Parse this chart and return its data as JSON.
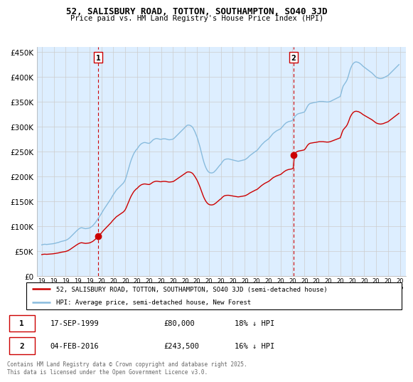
{
  "title": "52, SALISBURY ROAD, TOTTON, SOUTHAMPTON, SO40 3JD",
  "subtitle": "Price paid vs. HM Land Registry's House Price Index (HPI)",
  "legend_label_red": "52, SALISBURY ROAD, TOTTON, SOUTHAMPTON, SO40 3JD (semi-detached house)",
  "legend_label_blue": "HPI: Average price, semi-detached house, New Forest",
  "footer": "Contains HM Land Registry data © Crown copyright and database right 2025.\nThis data is licensed under the Open Government Licence v3.0.",
  "yticks": [
    0,
    50000,
    100000,
    150000,
    200000,
    250000,
    300000,
    350000,
    400000,
    450000
  ],
  "ytick_labels": [
    "£0",
    "£50K",
    "£100K",
    "£150K",
    "£200K",
    "£250K",
    "£300K",
    "£350K",
    "£400K",
    "£450K"
  ],
  "ylim": [
    0,
    460000
  ],
  "marker1": {
    "label": "1",
    "date": "17-SEP-1999",
    "price": "£80,000",
    "pct": "18% ↓ HPI",
    "x_year": 1999.72,
    "y": 80000
  },
  "marker2": {
    "label": "2",
    "date": "04-FEB-2016",
    "price": "£243,500",
    "pct": "16% ↓ HPI",
    "x_year": 2016.09,
    "y": 243500
  },
  "red_color": "#cc0000",
  "blue_color": "#88bbdd",
  "vline_color": "#cc0000",
  "grid_color": "#cccccc",
  "bg_fill_color": "#ddeeff",
  "background_color": "#ffffff",
  "hpi_months": [
    1995.0,
    1995.083,
    1995.167,
    1995.25,
    1995.333,
    1995.417,
    1995.5,
    1995.583,
    1995.667,
    1995.75,
    1995.833,
    1995.917,
    1996.0,
    1996.083,
    1996.167,
    1996.25,
    1996.333,
    1996.417,
    1996.5,
    1996.583,
    1996.667,
    1996.75,
    1996.833,
    1996.917,
    1997.0,
    1997.083,
    1997.167,
    1997.25,
    1997.333,
    1997.417,
    1997.5,
    1997.583,
    1997.667,
    1997.75,
    1997.833,
    1997.917,
    1998.0,
    1998.083,
    1998.167,
    1998.25,
    1998.333,
    1998.417,
    1998.5,
    1998.583,
    1998.667,
    1998.75,
    1998.833,
    1998.917,
    1999.0,
    1999.083,
    1999.167,
    1999.25,
    1999.333,
    1999.417,
    1999.5,
    1999.583,
    1999.667,
    1999.75,
    1999.833,
    1999.917,
    2000.0,
    2000.083,
    2000.167,
    2000.25,
    2000.333,
    2000.417,
    2000.5,
    2000.583,
    2000.667,
    2000.75,
    2000.833,
    2000.917,
    2001.0,
    2001.083,
    2001.167,
    2001.25,
    2001.333,
    2001.417,
    2001.5,
    2001.583,
    2001.667,
    2001.75,
    2001.833,
    2001.917,
    2002.0,
    2002.083,
    2002.167,
    2002.25,
    2002.333,
    2002.417,
    2002.5,
    2002.583,
    2002.667,
    2002.75,
    2002.833,
    2002.917,
    2003.0,
    2003.083,
    2003.167,
    2003.25,
    2003.333,
    2003.417,
    2003.5,
    2003.583,
    2003.667,
    2003.75,
    2003.833,
    2003.917,
    2004.0,
    2004.083,
    2004.167,
    2004.25,
    2004.333,
    2004.417,
    2004.5,
    2004.583,
    2004.667,
    2004.75,
    2004.833,
    2004.917,
    2005.0,
    2005.083,
    2005.167,
    2005.25,
    2005.333,
    2005.417,
    2005.5,
    2005.583,
    2005.667,
    2005.75,
    2005.833,
    2005.917,
    2006.0,
    2006.083,
    2006.167,
    2006.25,
    2006.333,
    2006.417,
    2006.5,
    2006.583,
    2006.667,
    2006.75,
    2006.833,
    2006.917,
    2007.0,
    2007.083,
    2007.167,
    2007.25,
    2007.333,
    2007.417,
    2007.5,
    2007.583,
    2007.667,
    2007.75,
    2007.833,
    2007.917,
    2008.0,
    2008.083,
    2008.167,
    2008.25,
    2008.333,
    2008.417,
    2008.5,
    2008.583,
    2008.667,
    2008.75,
    2008.833,
    2008.917,
    2009.0,
    2009.083,
    2009.167,
    2009.25,
    2009.333,
    2009.417,
    2009.5,
    2009.583,
    2009.667,
    2009.75,
    2009.833,
    2009.917,
    2010.0,
    2010.083,
    2010.167,
    2010.25,
    2010.333,
    2010.417,
    2010.5,
    2010.583,
    2010.667,
    2010.75,
    2010.833,
    2010.917,
    2011.0,
    2011.083,
    2011.167,
    2011.25,
    2011.333,
    2011.417,
    2011.5,
    2011.583,
    2011.667,
    2011.75,
    2011.833,
    2011.917,
    2012.0,
    2012.083,
    2012.167,
    2012.25,
    2012.333,
    2012.417,
    2012.5,
    2012.583,
    2012.667,
    2012.75,
    2012.833,
    2012.917,
    2013.0,
    2013.083,
    2013.167,
    2013.25,
    2013.333,
    2013.417,
    2013.5,
    2013.583,
    2013.667,
    2013.75,
    2013.833,
    2013.917,
    2014.0,
    2014.083,
    2014.167,
    2014.25,
    2014.333,
    2014.417,
    2014.5,
    2014.583,
    2014.667,
    2014.75,
    2014.833,
    2014.917,
    2015.0,
    2015.083,
    2015.167,
    2015.25,
    2015.333,
    2015.417,
    2015.5,
    2015.583,
    2015.667,
    2015.75,
    2015.833,
    2015.917,
    2016.0,
    2016.083,
    2016.167,
    2016.25,
    2016.333,
    2016.417,
    2016.5,
    2016.583,
    2016.667,
    2016.75,
    2016.833,
    2016.917,
    2017.0,
    2017.083,
    2017.167,
    2017.25,
    2017.333,
    2017.417,
    2017.5,
    2017.583,
    2017.667,
    2017.75,
    2017.833,
    2017.917,
    2018.0,
    2018.083,
    2018.167,
    2018.25,
    2018.333,
    2018.417,
    2018.5,
    2018.583,
    2018.667,
    2018.75,
    2018.833,
    2018.917,
    2019.0,
    2019.083,
    2019.167,
    2019.25,
    2019.333,
    2019.417,
    2019.5,
    2019.583,
    2019.667,
    2019.75,
    2019.833,
    2019.917,
    2020.0,
    2020.083,
    2020.167,
    2020.25,
    2020.333,
    2020.417,
    2020.5,
    2020.583,
    2020.667,
    2020.75,
    2020.833,
    2020.917,
    2021.0,
    2021.083,
    2021.167,
    2021.25,
    2021.333,
    2021.417,
    2021.5,
    2021.583,
    2021.667,
    2021.75,
    2021.833,
    2021.917,
    2022.0,
    2022.083,
    2022.167,
    2022.25,
    2022.333,
    2022.417,
    2022.5,
    2022.583,
    2022.667,
    2022.75,
    2022.833,
    2022.917,
    2023.0,
    2023.083,
    2023.167,
    2023.25,
    2023.333,
    2023.417,
    2023.5,
    2023.583,
    2023.667,
    2023.75,
    2023.833,
    2023.917,
    2024.0,
    2024.083,
    2024.167,
    2024.25,
    2024.333,
    2024.417,
    2024.5,
    2024.583,
    2024.667,
    2024.75,
    2024.833,
    2024.917
  ],
  "hpi_values": [
    63000,
    63500,
    64000,
    64200,
    64000,
    63800,
    64000,
    64200,
    64500,
    64800,
    65000,
    65200,
    65500,
    66000,
    66500,
    67000,
    67500,
    68000,
    68800,
    69500,
    70000,
    70500,
    71000,
    71500,
    72000,
    73000,
    74000,
    75500,
    77000,
    79000,
    81000,
    83000,
    85000,
    87000,
    89000,
    91000,
    93000,
    94500,
    96000,
    97000,
    97500,
    97000,
    96500,
    96000,
    95500,
    95800,
    96000,
    96500,
    97000,
    98000,
    99500,
    101000,
    103000,
    105500,
    108000,
    111000,
    114000,
    117000,
    120000,
    123000,
    126000,
    129500,
    133000,
    136000,
    139000,
    142000,
    145000,
    148000,
    151000,
    154000,
    157000,
    161000,
    164000,
    167000,
    170000,
    173000,
    175000,
    177000,
    179000,
    181000,
    183000,
    185000,
    187000,
    190000,
    194000,
    200000,
    207000,
    214000,
    221000,
    228000,
    234000,
    239000,
    244000,
    248000,
    251000,
    254000,
    256000,
    259000,
    262000,
    264000,
    266000,
    267000,
    268000,
    268500,
    268500,
    268000,
    267500,
    267000,
    267000,
    268000,
    270000,
    272000,
    274000,
    275000,
    276000,
    276500,
    276500,
    276000,
    275500,
    275000,
    275000,
    275500,
    276000,
    276000,
    276000,
    275500,
    275000,
    274500,
    274000,
    274200,
    274500,
    275000,
    275500,
    277000,
    279000,
    281000,
    283000,
    285000,
    287000,
    289000,
    291000,
    293000,
    295000,
    297000,
    299000,
    301000,
    303000,
    303500,
    303500,
    303000,
    302000,
    300500,
    298000,
    294000,
    290000,
    285000,
    280000,
    274000,
    267000,
    260000,
    252000,
    244000,
    236000,
    229000,
    223000,
    218000,
    214000,
    211000,
    209000,
    208000,
    207500,
    207500,
    208000,
    209000,
    211000,
    213000,
    215500,
    218000,
    220500,
    223000,
    225000,
    228000,
    231000,
    233000,
    234500,
    235000,
    235500,
    235500,
    235500,
    235000,
    234500,
    234000,
    233500,
    233000,
    232500,
    232000,
    231500,
    231000,
    231000,
    231500,
    232000,
    232500,
    233000,
    233500,
    234000,
    235000,
    236500,
    238000,
    240000,
    242000,
    243500,
    245000,
    246500,
    248000,
    249500,
    251000,
    252000,
    254000,
    256500,
    259000,
    261500,
    264000,
    266000,
    268000,
    270000,
    271500,
    273000,
    274500,
    276000,
    278000,
    280500,
    283000,
    285500,
    287500,
    289000,
    290500,
    292000,
    293000,
    294000,
    295000,
    296000,
    298000,
    300500,
    303000,
    305000,
    307000,
    308500,
    309500,
    310500,
    311000,
    311500,
    312000,
    313000,
    316000,
    319500,
    322000,
    324000,
    325500,
    326500,
    327000,
    327500,
    328000,
    328500,
    329000,
    330000,
    333000,
    337000,
    341000,
    344000,
    346000,
    347000,
    347500,
    348000,
    348500,
    348800,
    349000,
    349500,
    350000,
    350500,
    351000,
    351000,
    351000,
    351000,
    351000,
    350500,
    350500,
    350000,
    350000,
    350000,
    350500,
    351000,
    352000,
    353000,
    354000,
    355000,
    356000,
    357000,
    358000,
    359000,
    360000,
    361000,
    368000,
    376000,
    382000,
    385000,
    388000,
    391000,
    395000,
    401000,
    408000,
    415000,
    420000,
    424000,
    427000,
    429000,
    430000,
    430500,
    430000,
    429500,
    428500,
    427000,
    425500,
    423500,
    421500,
    420000,
    418500,
    417000,
    415500,
    414000,
    412500,
    411000,
    409500,
    408000,
    406000,
    404000,
    402000,
    400000,
    399000,
    398000,
    397500,
    397000,
    397000,
    397500,
    398000,
    399000,
    400000,
    401000,
    402000,
    403000,
    405000,
    407000,
    409000,
    411000,
    413000,
    415000,
    417000,
    419000,
    421000,
    423000,
    425000
  ],
  "xtick_years": [
    1995,
    1996,
    1997,
    1998,
    1999,
    2000,
    2001,
    2002,
    2003,
    2004,
    2005,
    2006,
    2007,
    2008,
    2009,
    2010,
    2011,
    2012,
    2013,
    2014,
    2015,
    2016,
    2017,
    2018,
    2019,
    2020,
    2021,
    2022,
    2023,
    2024,
    2025
  ]
}
